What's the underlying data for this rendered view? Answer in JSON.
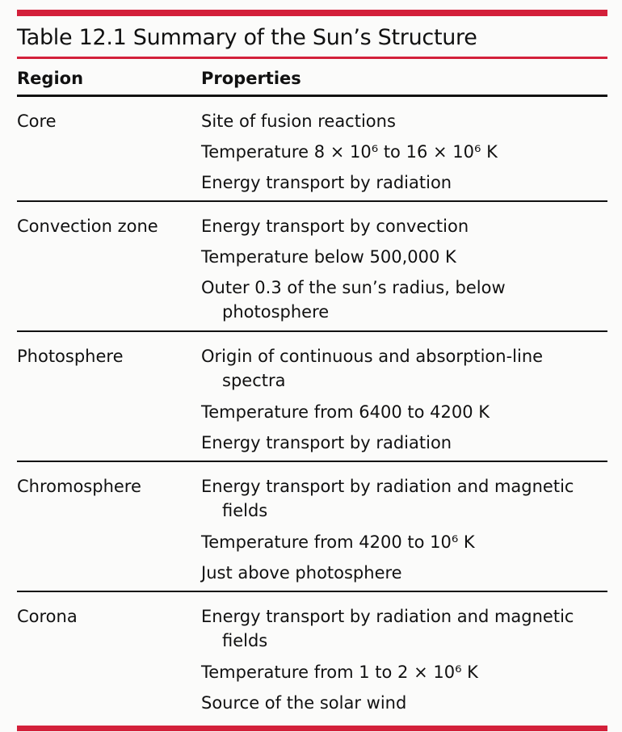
{
  "title": "Table 12.1  Summary of the Sun’s Structure",
  "headers": {
    "region": "Region",
    "properties": "Properties"
  },
  "rows": [
    {
      "region": "Core",
      "properties": [
        {
          "text": "Site of fusion reactions"
        },
        {
          "text": "Temperature 8 × 10⁶ to 16 × 10⁶ K"
        },
        {
          "text": "Energy transport by radiation"
        }
      ]
    },
    {
      "region": "Convection zone",
      "properties": [
        {
          "text": "Energy transport by convection"
        },
        {
          "text": "Temperature below 500,000 K"
        },
        {
          "text": "Outer 0.3 of the sun’s radius, below",
          "cont": "photosphere"
        }
      ]
    },
    {
      "region": "Photosphere",
      "properties": [
        {
          "text": "Origin of continuous and absorption-line",
          "cont": "spectra"
        },
        {
          "text": "Temperature from 6400 to 4200 K"
        },
        {
          "text": "Energy transport by radiation"
        }
      ]
    },
    {
      "region": "Chromosphere",
      "properties": [
        {
          "text": "Energy transport by radiation and magnetic",
          "cont": "fields"
        },
        {
          "text": "Temperature from 4200 to 10⁶ K"
        },
        {
          "text": "Just above photosphere"
        }
      ]
    },
    {
      "region": "Corona",
      "properties": [
        {
          "text": "Energy transport by radiation and magnetic",
          "cont": "fields"
        },
        {
          "text": "Temperature from 1 to 2 × 10⁶ K"
        },
        {
          "text": "Source of the solar wind"
        }
      ]
    }
  ],
  "colors": {
    "accent": "#d3203a",
    "rule": "#111111"
  }
}
